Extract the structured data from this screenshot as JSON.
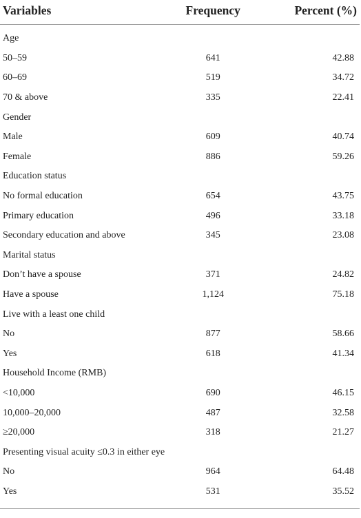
{
  "headers": {
    "variables": "Variables",
    "frequency": "Frequency",
    "percent": "Percent (%)"
  },
  "rows": [
    {
      "label": "Age",
      "frequency": "",
      "percent": ""
    },
    {
      "label": "50–59",
      "frequency": "641",
      "percent": "42.88"
    },
    {
      "label": "60–69",
      "frequency": "519",
      "percent": "34.72"
    },
    {
      "label": "70 & above",
      "frequency": "335",
      "percent": "22.41"
    },
    {
      "label": "Gender",
      "frequency": "",
      "percent": ""
    },
    {
      "label": "Male",
      "frequency": "609",
      "percent": "40.74"
    },
    {
      "label": "Female",
      "frequency": "886",
      "percent": "59.26"
    },
    {
      "label": "Education status",
      "frequency": "",
      "percent": ""
    },
    {
      "label": "No formal education",
      "frequency": "654",
      "percent": "43.75"
    },
    {
      "label": "Primary education",
      "frequency": "496",
      "percent": "33.18"
    },
    {
      "label": "Secondary education and above",
      "frequency": "345",
      "percent": "23.08"
    },
    {
      "label": "Marital status",
      "frequency": "",
      "percent": ""
    },
    {
      "label": "Don’t have a spouse",
      "frequency": "371",
      "percent": "24.82"
    },
    {
      "label": "Have a spouse",
      "frequency": "1,124",
      "percent": "75.18"
    },
    {
      "label": "Live with a least one child",
      "frequency": "",
      "percent": ""
    },
    {
      "label": "No",
      "frequency": "877",
      "percent": "58.66"
    },
    {
      "label": "Yes",
      "frequency": "618",
      "percent": "41.34"
    },
    {
      "label": "Household Income (RMB)",
      "frequency": "",
      "percent": ""
    },
    {
      "label": "<10,000",
      "frequency": "690",
      "percent": "46.15"
    },
    {
      "label": "10,000–20,000",
      "frequency": "487",
      "percent": "32.58"
    },
    {
      "label": "≥20,000",
      "frequency": "318",
      "percent": "21.27"
    },
    {
      "label": "Presenting visual acuity ≤0.3 in either eye",
      "frequency": "",
      "percent": ""
    },
    {
      "label": "No",
      "frequency": "964",
      "percent": "64.48"
    },
    {
      "label": "Yes",
      "frequency": "531",
      "percent": "35.52"
    }
  ]
}
